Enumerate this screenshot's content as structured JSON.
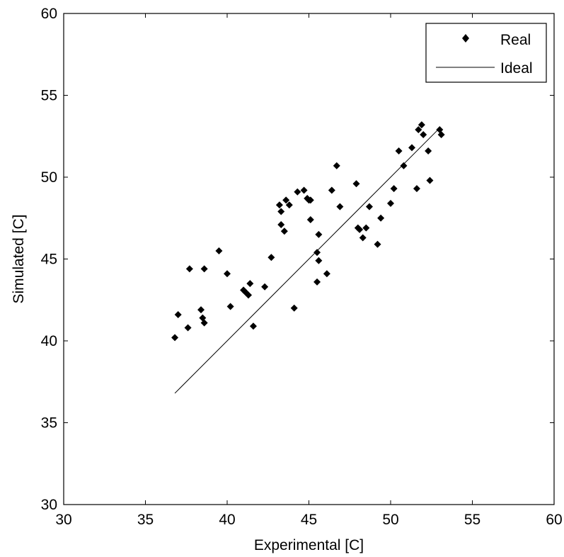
{
  "chart_data": {
    "type": "scatter",
    "xlabel": "Experimental [C]",
    "ylabel": "Simulated [C]",
    "xlim": [
      30,
      60
    ],
    "ylim": [
      30,
      60
    ],
    "xticks": [
      30,
      35,
      40,
      45,
      50,
      55,
      60
    ],
    "yticks": [
      30,
      35,
      40,
      45,
      50,
      55,
      60
    ],
    "grid": false,
    "legend": {
      "position": "top-right",
      "entries": [
        {
          "label": "Real",
          "marker": "diamond"
        },
        {
          "label": "Ideal",
          "marker": "line"
        }
      ]
    },
    "series": [
      {
        "name": "Real",
        "kind": "scatter",
        "color": "#000000",
        "points": [
          [
            36.8,
            40.2
          ],
          [
            37.0,
            41.6
          ],
          [
            37.6,
            40.8
          ],
          [
            37.7,
            44.4
          ],
          [
            38.4,
            41.9
          ],
          [
            38.5,
            41.4
          ],
          [
            38.6,
            41.1
          ],
          [
            38.6,
            44.4
          ],
          [
            39.5,
            45.5
          ],
          [
            40.0,
            44.1
          ],
          [
            40.2,
            42.1
          ],
          [
            41.0,
            43.1
          ],
          [
            41.1,
            43.0
          ],
          [
            41.3,
            42.8
          ],
          [
            41.4,
            43.5
          ],
          [
            41.6,
            40.9
          ],
          [
            42.3,
            43.3
          ],
          [
            42.7,
            45.1
          ],
          [
            43.2,
            48.3
          ],
          [
            43.3,
            47.9
          ],
          [
            43.3,
            47.1
          ],
          [
            43.5,
            46.7
          ],
          [
            43.6,
            48.6
          ],
          [
            43.8,
            48.3
          ],
          [
            44.1,
            42.0
          ],
          [
            44.3,
            49.1
          ],
          [
            44.7,
            49.2
          ],
          [
            44.9,
            48.7
          ],
          [
            45.0,
            48.6
          ],
          [
            45.1,
            48.6
          ],
          [
            45.1,
            47.4
          ],
          [
            45.5,
            45.4
          ],
          [
            45.5,
            43.6
          ],
          [
            45.6,
            44.9
          ],
          [
            45.6,
            46.5
          ],
          [
            46.1,
            44.1
          ],
          [
            46.4,
            49.2
          ],
          [
            46.7,
            50.7
          ],
          [
            46.9,
            48.2
          ],
          [
            47.9,
            49.6
          ],
          [
            48.0,
            46.9
          ],
          [
            48.1,
            46.8
          ],
          [
            48.3,
            46.3
          ],
          [
            48.5,
            46.9
          ],
          [
            48.7,
            48.2
          ],
          [
            49.2,
            45.9
          ],
          [
            49.4,
            47.5
          ],
          [
            50.0,
            48.4
          ],
          [
            50.2,
            49.3
          ],
          [
            50.5,
            51.6
          ],
          [
            50.8,
            50.7
          ],
          [
            51.3,
            51.8
          ],
          [
            51.6,
            49.3
          ],
          [
            51.7,
            52.9
          ],
          [
            51.9,
            53.2
          ],
          [
            52.0,
            52.6
          ],
          [
            52.3,
            51.6
          ],
          [
            52.4,
            49.8
          ],
          [
            53.0,
            52.9
          ],
          [
            53.1,
            52.6
          ]
        ]
      },
      {
        "name": "Ideal",
        "kind": "line",
        "color": "#000000",
        "points": [
          [
            36.8,
            36.8
          ],
          [
            53.0,
            53.0
          ]
        ]
      }
    ]
  }
}
